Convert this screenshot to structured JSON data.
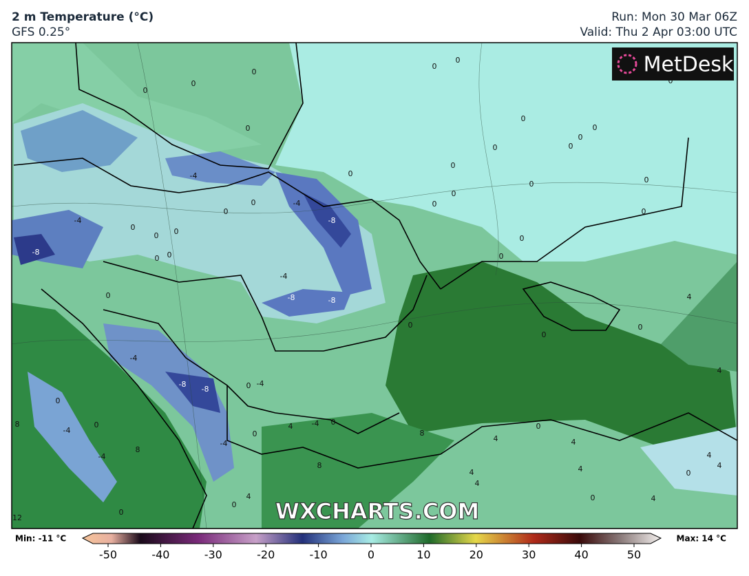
{
  "header": {
    "title": "2 m Temperature (°C)",
    "subtitle": "GFS 0.25°",
    "run": "Run: Mon 30 Mar 06Z",
    "valid": "Valid: Thu 2 Apr 03:00 UTC"
  },
  "logo": "MetDesk",
  "watermark": "WXCHARTS.COM",
  "contour_labels": [
    0,
    0,
    0,
    0,
    0,
    0,
    0,
    0,
    0,
    0,
    0,
    0,
    0,
    0,
    0,
    0,
    0,
    0,
    0,
    -4,
    -4,
    -4,
    -8,
    -8,
    0,
    0,
    0,
    0,
    0,
    0,
    0,
    -4,
    -8,
    -8,
    0,
    0,
    0,
    4,
    0,
    0,
    0,
    -4,
    -8,
    -8,
    -4,
    0,
    0,
    8,
    -4,
    0,
    8,
    -4,
    -4,
    0,
    4,
    -4,
    0,
    8,
    0,
    4,
    4,
    4,
    4,
    4,
    4,
    0,
    4,
    4,
    0,
    4,
    0,
    12,
    0,
    4,
    8
  ],
  "colorbar": {
    "min_label": "Min: -11 °C",
    "max_label": "Max: 14 °C",
    "ticks": [
      -50,
      -40,
      -30,
      -20,
      -10,
      0,
      10,
      20,
      30,
      40,
      50
    ],
    "lim": [
      -50,
      50
    ]
  }
}
